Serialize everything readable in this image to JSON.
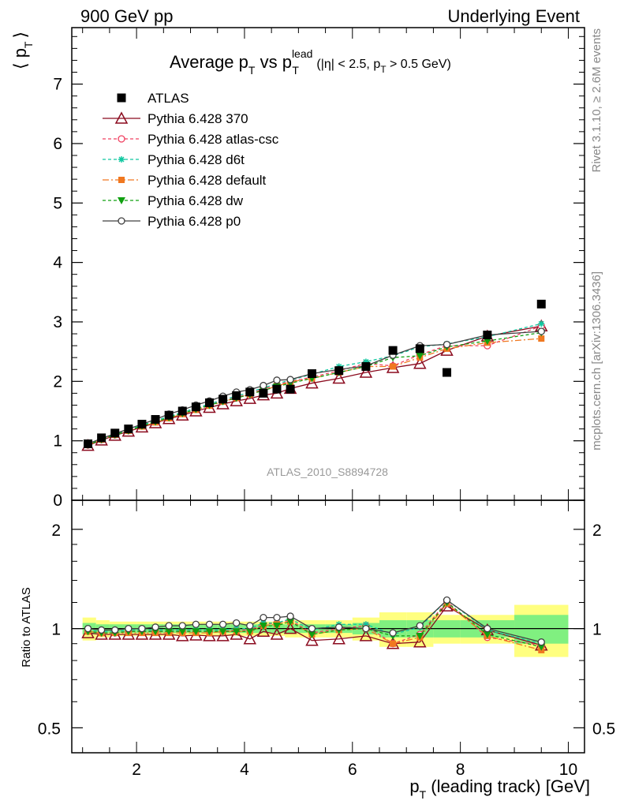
{
  "header": {
    "left": "900 GeV pp",
    "right": "Underlying Event"
  },
  "side_labels": {
    "rivet": "Rivet 3.1.10, ≥ 2.6M events",
    "mcplots": "mcplots.cern.ch [arXiv:1306.3436]"
  },
  "watermark": "ATLAS_2010_S8894728",
  "colors": {
    "atlas": "#000000",
    "p370": "#8b0a1e",
    "atlas_csc": "#f04060",
    "d6t": "#10c8a0",
    "default": "#f07820",
    "dw": "#10a010",
    "p0": "#404040",
    "band_stat": "#80f080",
    "band_sys": "#ffff80"
  },
  "chart_data": [
    {
      "type": "line",
      "title": "Average p_T vs p_T^lead (|η| < 2.5, p_T > 0.5 GeV)",
      "title_parts": {
        "main": "Average p",
        "sub1": "T",
        "vs": " vs p",
        "sup": "lead",
        "sub2": "T",
        "cond_a": " (|η| < 2.5, p",
        "cond_sub": "T",
        "cond_b": " > 0.5 GeV)"
      },
      "ylabel": "⟨ p_T ⟩",
      "ylabel_parts": {
        "open": "⟨ p",
        "sub": "T",
        "close": "⟩"
      },
      "xlim": [
        0.8,
        10.3
      ],
      "ylim": [
        0,
        7.95
      ],
      "yticks": [
        0,
        1,
        2,
        3,
        4,
        5,
        6,
        7
      ],
      "ytick_labels": [
        "0",
        "1",
        "2",
        "3",
        "4",
        "5",
        "6",
        "7"
      ],
      "x": [
        1.1,
        1.35,
        1.6,
        1.85,
        2.1,
        2.35,
        2.6,
        2.85,
        3.1,
        3.35,
        3.6,
        3.85,
        4.1,
        4.35,
        4.6,
        4.85,
        5.25,
        5.75,
        6.25,
        6.75,
        7.25,
        7.75,
        8.5,
        9.5
      ],
      "atlas": {
        "name": "ATLAS",
        "values": [
          0.95,
          1.05,
          1.13,
          1.2,
          1.28,
          1.36,
          1.43,
          1.5,
          1.57,
          1.64,
          1.7,
          1.76,
          1.82,
          1.8,
          1.87,
          1.87,
          2.13,
          2.18,
          2.25,
          2.52,
          2.55,
          2.15,
          2.78,
          3.3
        ]
      },
      "series": [
        {
          "name": "Pythia 6.428 370",
          "key": "p370",
          "marker": "triangle-open",
          "dash": "",
          "values": [
            0.92,
            1.01,
            1.09,
            1.16,
            1.23,
            1.3,
            1.37,
            1.43,
            1.5,
            1.56,
            1.62,
            1.67,
            1.71,
            1.77,
            1.8,
            1.88,
            1.97,
            2.05,
            2.15,
            2.23,
            2.3,
            2.52,
            2.76,
            2.93
          ]
        },
        {
          "name": "Pythia 6.428 atlas-csc",
          "key": "atlas_csc",
          "marker": "circle-open",
          "dash": "4,3",
          "values": [
            0.93,
            1.02,
            1.1,
            1.17,
            1.25,
            1.32,
            1.39,
            1.46,
            1.53,
            1.6,
            1.67,
            1.73,
            1.79,
            1.87,
            1.94,
            2.0,
            2.07,
            2.18,
            2.3,
            2.26,
            2.45,
            2.6,
            2.6,
            2.93
          ]
        },
        {
          "name": "Pythia 6.428 d6t",
          "key": "d6t",
          "marker": "star",
          "dash": "4,3",
          "values": [
            0.94,
            1.03,
            1.11,
            1.18,
            1.26,
            1.34,
            1.41,
            1.48,
            1.55,
            1.62,
            1.69,
            1.75,
            1.82,
            1.89,
            1.96,
            2.02,
            2.12,
            2.25,
            2.33,
            2.43,
            2.58,
            2.63,
            2.75,
            2.97
          ]
        },
        {
          "name": "Pythia 6.428 default",
          "key": "default",
          "marker": "square",
          "dash": "8,3,2,3",
          "values": [
            0.93,
            1.02,
            1.1,
            1.17,
            1.24,
            1.31,
            1.38,
            1.45,
            1.52,
            1.59,
            1.66,
            1.72,
            1.78,
            1.85,
            1.92,
            1.99,
            2.05,
            2.15,
            2.25,
            2.25,
            2.4,
            2.55,
            2.65,
            2.72
          ]
        },
        {
          "name": "Pythia 6.428 dw",
          "key": "dw",
          "marker": "triangle-down",
          "dash": "4,3",
          "values": [
            0.93,
            1.02,
            1.1,
            1.17,
            1.25,
            1.32,
            1.39,
            1.46,
            1.53,
            1.6,
            1.66,
            1.72,
            1.78,
            1.85,
            1.91,
            1.97,
            2.05,
            2.15,
            2.25,
            2.4,
            2.43,
            2.58,
            2.68,
            2.82
          ]
        },
        {
          "name": "Pythia 6.428 p0",
          "key": "p0",
          "marker": "circle-open",
          "dash": "",
          "values": [
            0.95,
            1.04,
            1.12,
            1.2,
            1.28,
            1.36,
            1.45,
            1.52,
            1.6,
            1.67,
            1.75,
            1.82,
            1.86,
            1.93,
            2.02,
            2.03,
            2.13,
            2.2,
            2.26,
            2.44,
            2.6,
            2.62,
            2.78,
            2.84
          ]
        }
      ],
      "legend": "top-left"
    },
    {
      "type": "line",
      "ylabel": "Ratio to ATLAS",
      "xlabel": "p_T (leading track) [GeV]",
      "xlabel_parts": {
        "main": "p",
        "sub": "T",
        "rest": " (leading track) [GeV]"
      },
      "xlim": [
        0.8,
        10.3
      ],
      "xticks": [
        2,
        4,
        6,
        8,
        10
      ],
      "xtick_labels": [
        "2",
        "4",
        "6",
        "8",
        "10"
      ],
      "ylim": [
        0.42,
        2.45
      ],
      "yscale": "log",
      "yticks": [
        0.5,
        1,
        2
      ],
      "ytick_labels": [
        "0.5",
        "1",
        "2"
      ],
      "x": [
        1.1,
        1.35,
        1.6,
        1.85,
        2.1,
        2.35,
        2.6,
        2.85,
        3.1,
        3.35,
        3.6,
        3.85,
        4.1,
        4.35,
        4.6,
        4.85,
        5.25,
        5.75,
        6.25,
        6.75,
        7.25,
        7.75,
        8.5,
        9.5
      ],
      "bin_edges": [
        1.0,
        1.25,
        1.5,
        1.75,
        2.0,
        2.25,
        2.5,
        2.75,
        3.0,
        3.25,
        3.5,
        3.75,
        4.0,
        4.25,
        4.5,
        4.75,
        5.0,
        5.5,
        6.0,
        6.5,
        7.0,
        7.5,
        8.0,
        9.0,
        10.0
      ],
      "band_stat": [
        0.04,
        0.03,
        0.03,
        0.03,
        0.03,
        0.03,
        0.03,
        0.03,
        0.03,
        0.03,
        0.03,
        0.03,
        0.03,
        0.03,
        0.03,
        0.03,
        0.03,
        0.03,
        0.04,
        0.06,
        0.06,
        0.06,
        0.06,
        0.1
      ],
      "band_sys": [
        0.08,
        0.06,
        0.05,
        0.05,
        0.05,
        0.05,
        0.05,
        0.05,
        0.05,
        0.05,
        0.05,
        0.05,
        0.05,
        0.05,
        0.05,
        0.06,
        0.06,
        0.06,
        0.08,
        0.12,
        0.12,
        0.1,
        0.1,
        0.18
      ],
      "series": [
        {
          "name": "Pythia 6.428 370",
          "key": "p370",
          "marker": "triangle-open",
          "dash": "",
          "values": [
            0.97,
            0.96,
            0.96,
            0.96,
            0.96,
            0.96,
            0.96,
            0.95,
            0.955,
            0.95,
            0.95,
            0.96,
            0.93,
            0.98,
            0.96,
            1.0,
            0.92,
            0.93,
            0.95,
            0.9,
            0.91,
            1.17,
            0.99,
            0.89
          ]
        },
        {
          "name": "Pythia 6.428 atlas-csc",
          "key": "atlas_csc",
          "marker": "circle-open",
          "dash": "4,3",
          "values": [
            0.98,
            0.97,
            0.97,
            0.98,
            0.98,
            0.98,
            0.98,
            0.98,
            0.98,
            0.98,
            0.98,
            0.99,
            0.99,
            1.03,
            1.04,
            1.06,
            0.97,
            1.0,
            1.02,
            0.9,
            0.96,
            1.21,
            0.94,
            0.89
          ]
        },
        {
          "name": "Pythia 6.428 d6t",
          "key": "d6t",
          "marker": "star",
          "dash": "4,3",
          "values": [
            0.99,
            0.98,
            0.98,
            0.99,
            0.99,
            0.99,
            0.99,
            0.99,
            0.99,
            0.99,
            0.99,
            1.0,
            1.0,
            1.04,
            1.04,
            1.07,
            0.99,
            1.03,
            1.03,
            0.96,
            1.01,
            1.22,
            0.99,
            0.9
          ]
        },
        {
          "name": "Pythia 6.428 default",
          "key": "default",
          "marker": "square",
          "dash": "8,3,2,3",
          "values": [
            0.98,
            0.97,
            0.97,
            0.97,
            0.97,
            0.97,
            0.97,
            0.97,
            0.97,
            0.97,
            0.98,
            0.98,
            0.98,
            1.02,
            1.03,
            1.05,
            0.96,
            0.99,
            1.0,
            0.9,
            0.94,
            1.19,
            0.95,
            0.86
          ]
        },
        {
          "name": "Pythia 6.428 dw",
          "key": "dw",
          "marker": "triangle-down",
          "dash": "4,3",
          "values": [
            0.98,
            0.97,
            0.97,
            0.98,
            0.98,
            0.98,
            0.98,
            0.98,
            0.98,
            0.98,
            0.98,
            0.98,
            0.98,
            1.02,
            1.02,
            1.05,
            0.96,
            0.99,
            1.0,
            0.95,
            0.95,
            1.2,
            0.96,
            0.88
          ]
        },
        {
          "name": "Pythia 6.428 p0",
          "key": "p0",
          "marker": "circle-open",
          "dash": "",
          "values": [
            1.0,
            0.99,
            0.99,
            1.0,
            1.0,
            1.01,
            1.02,
            1.02,
            1.03,
            1.03,
            1.03,
            1.04,
            1.02,
            1.08,
            1.08,
            1.09,
            1.0,
            1.01,
            1.0,
            0.97,
            1.02,
            1.22,
            1.0,
            0.91
          ]
        }
      ]
    }
  ]
}
